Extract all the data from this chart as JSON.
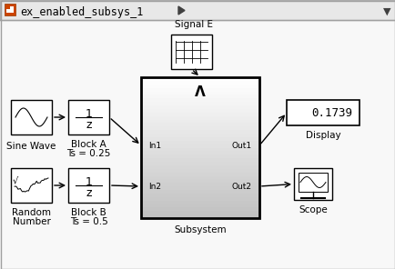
{
  "bg_color": "#f5f5f5",
  "title_bar_color": "#e8e8e8",
  "title_bar_border": "#c0c0c0",
  "title_text": "ex_enabled_subsys_1",
  "title_fontsize": 9,
  "block_border": "#222222",
  "block_bg": "#ffffff",
  "subsystem_bg_top": "#ffffff",
  "subsystem_bg_bottom": "#d0d0d0",
  "line_color": "#000000",
  "arrow_color": "#000000",
  "label_fontsize": 7.5,
  "small_fontsize": 6.5,
  "display_value": "0.1739",
  "sine_wave_label": "Sine Wave",
  "block_a_label1": "Block A",
  "block_a_label2": "Ts = 0.25",
  "block_b_label1": "Block B",
  "block_b_label2": "Ts = 0.5",
  "random_label1": "Random",
  "random_label2": "Number",
  "subsystem_label": "Subsystem",
  "display_label": "Display",
  "scope_label": "Scope",
  "signal_e_label": "Signal E"
}
